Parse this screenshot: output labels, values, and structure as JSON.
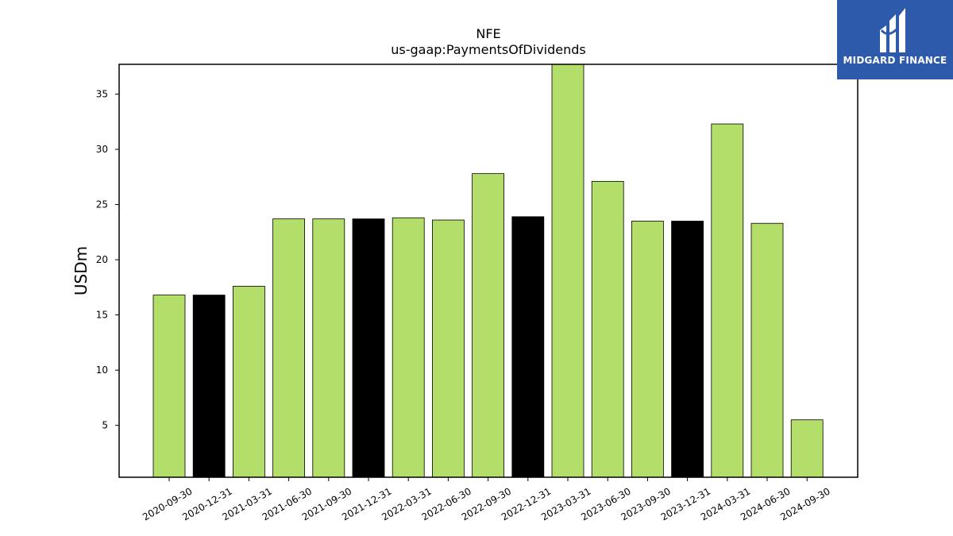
{
  "brand": {
    "name": "MIDGARD FINANCE",
    "bg_color": "#2e5aac"
  },
  "colors": {
    "green": "#b3de69",
    "black": "#000000",
    "edge": "#000000"
  },
  "chart_data": {
    "type": "bar",
    "title": "NFE",
    "subtitle": "us-gaap:PaymentsOfDividends",
    "xlabel": "",
    "ylabel": "USDm",
    "ylim": [
      0.3,
      37.7
    ],
    "yticks": [
      5,
      10,
      15,
      20,
      25,
      30,
      35
    ],
    "grid": false,
    "categories": [
      "2020-09-30",
      "2020-12-31",
      "2021-03-31",
      "2021-06-30",
      "2021-09-30",
      "2021-12-31",
      "2022-03-31",
      "2022-06-30",
      "2022-09-30",
      "2022-12-31",
      "2023-03-31",
      "2023-06-30",
      "2023-09-30",
      "2023-12-31",
      "2024-03-31",
      "2024-06-30",
      "2024-09-30"
    ],
    "values": [
      16.8,
      16.8,
      17.6,
      23.7,
      23.7,
      23.7,
      23.8,
      23.6,
      27.8,
      23.9,
      37.7,
      27.1,
      23.5,
      23.5,
      32.3,
      23.3,
      5.5
    ],
    "bar_colors": [
      "green",
      "black",
      "green",
      "green",
      "green",
      "black",
      "green",
      "green",
      "green",
      "black",
      "green",
      "green",
      "green",
      "black",
      "green",
      "green",
      "green"
    ]
  }
}
